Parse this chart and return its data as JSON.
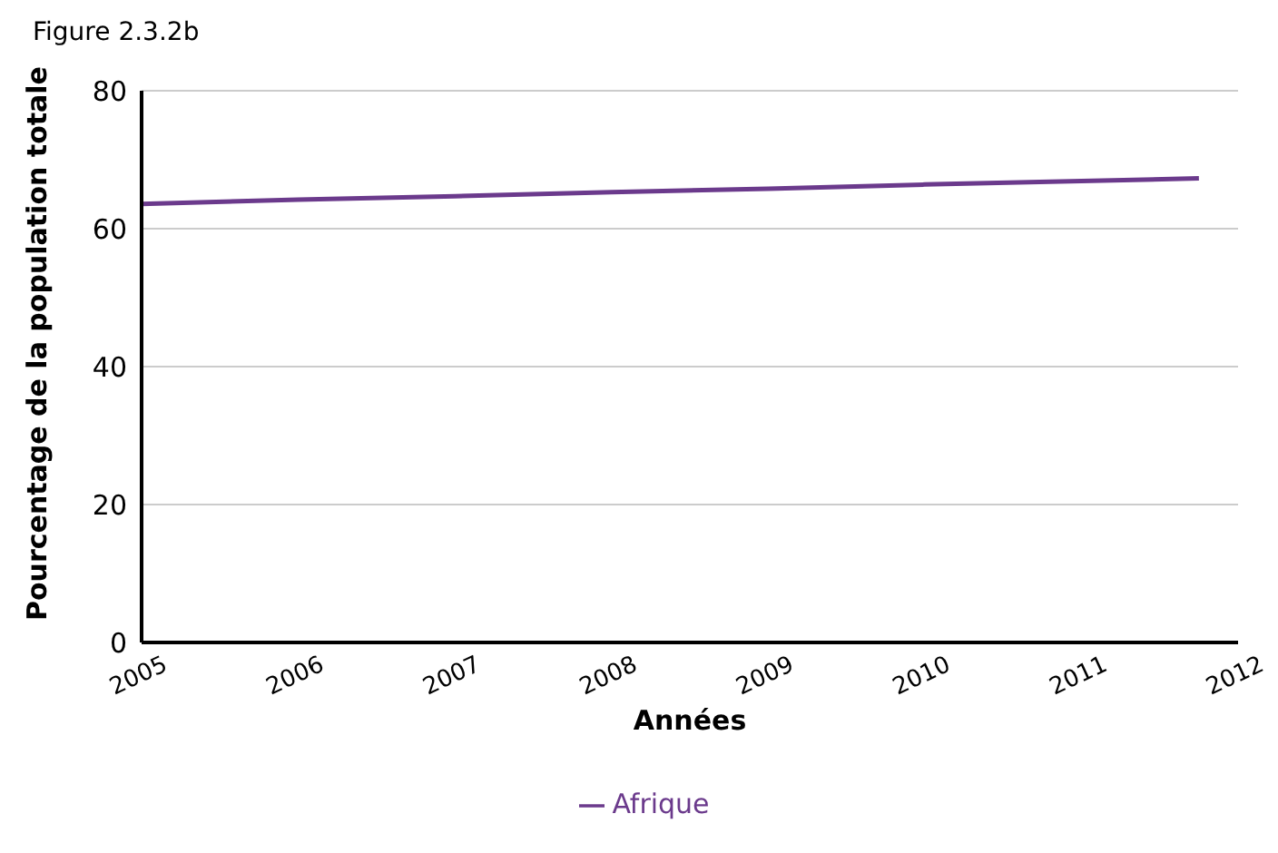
{
  "chart_data": {
    "type": "line",
    "title": "Figure 2.3.2b",
    "xlabel": "Années",
    "ylabel": "Pourcentage de la population totale",
    "x": [
      2005,
      2006,
      2007,
      2008,
      2009,
      2010,
      2011,
      2011.75
    ],
    "series": [
      {
        "name": "Afrique",
        "color": "#6b3a8c",
        "values": [
          63.6,
          64.2,
          64.7,
          65.3,
          65.8,
          66.4,
          66.9,
          67.3
        ]
      }
    ],
    "xlim": [
      2005,
      2012
    ],
    "xticks": [
      2005,
      2006,
      2007,
      2008,
      2009,
      2010,
      2011,
      2012
    ],
    "ylim": [
      0,
      80
    ],
    "yticks": [
      0,
      20,
      40,
      60,
      80
    ],
    "grid": "y",
    "legend": "bottom",
    "marker": "none",
    "line_style": "solid"
  }
}
